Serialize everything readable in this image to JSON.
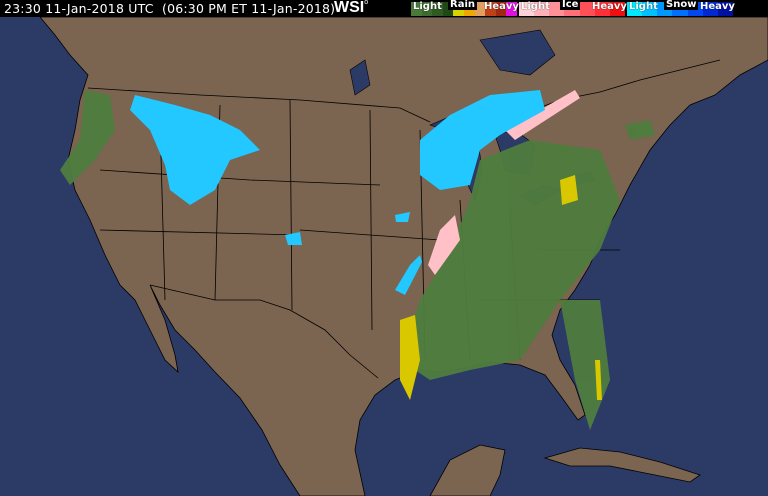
{
  "header": {
    "timestamp": "23:30 11-Jan-2018 UTC  (06:30 PM ET 11-Jan-2018)",
    "logo": "WSI"
  },
  "legend": {
    "rain": {
      "title": "Rain",
      "light": "Light",
      "heavy": "Heavy",
      "colors": [
        "#4a7a3a",
        "#3d6a2f",
        "#2f5a24",
        "#1f4a18",
        "#d9d200",
        "#f0a800",
        "#e0a060",
        "#c0401a",
        "#a02810",
        "#e010e0"
      ]
    },
    "ice": {
      "title": "Ice",
      "light": "Light",
      "heavy": "Heavy",
      "colors": [
        "#ffd0d8",
        "#ffb0b8",
        "#ff9098",
        "#ff7078",
        "#ff5058",
        "#ff3038",
        "#ee1010"
      ]
    },
    "snow": {
      "title": "Snow",
      "light": "Light",
      "heavy": "Heavy",
      "colors": [
        "#00e8ff",
        "#00c0ff",
        "#0098ff",
        "#0070ff",
        "#0048f0",
        "#0028d0",
        "#0010a0"
      ]
    }
  },
  "map": {
    "ocean_color": "#2c3b66",
    "land_color": "#7b6450",
    "border_color": "#000000"
  }
}
